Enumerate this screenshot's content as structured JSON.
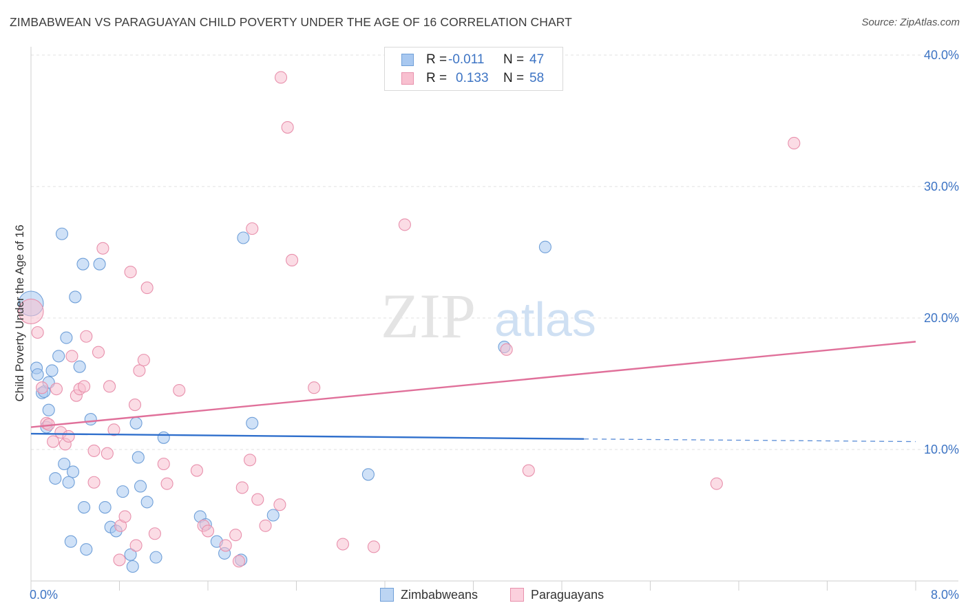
{
  "title": "ZIMBABWEAN VS PARAGUAYAN CHILD POVERTY UNDER THE AGE OF 16 CORRELATION CHART",
  "source": "Source: ZipAtlas.com",
  "watermark": {
    "zip": "ZIP",
    "atlas": "atlas"
  },
  "legend": {
    "rows": [
      {
        "r_label": "R =",
        "r_value": "-0.011",
        "n_label": "N =",
        "n_value": "47",
        "color": "#a8c8f0",
        "border": "#6f9fd8"
      },
      {
        "r_label": "R =",
        "r_value": "0.133",
        "n_label": "N =",
        "n_value": "58",
        "color": "#f8c0d0",
        "border": "#e890ac"
      }
    ]
  },
  "bottom_legend": [
    "Zimbabweans",
    "Paraguayans"
  ],
  "chart_data": {
    "type": "scatter",
    "title": "ZIMBABWEAN VS PARAGUAYAN CHILD POVERTY UNDER THE AGE OF 16 CORRELATION CHART",
    "xlabel": "",
    "ylabel": "Child Poverty Under the Age of 16",
    "xlim": [
      0,
      8
    ],
    "ylim": [
      0,
      40
    ],
    "x_ticks": [
      "0.0%",
      "8.0%"
    ],
    "y_ticks": [
      {
        "value": 10,
        "label": "10.0%"
      },
      {
        "value": 20,
        "label": "20.0%"
      },
      {
        "value": 30,
        "label": "30.0%"
      },
      {
        "value": 40,
        "label": "40.0%"
      }
    ],
    "grid": true,
    "legend_position": "top-center",
    "series": [
      {
        "name": "Zimbabweans",
        "color": "#a8c8f0",
        "stroke": "#6f9fd8",
        "trend": {
          "x0": 0,
          "y0": 11.2,
          "x1": 5.0,
          "y1": 10.8,
          "dash_x1": 8.0,
          "dash_y1": 10.6,
          "color": "#2f6fcc"
        },
        "points": [
          {
            "x": 0.0,
            "y": 21.1,
            "big": true
          },
          {
            "x": 0.05,
            "y": 16.2
          },
          {
            "x": 0.06,
            "y": 15.7
          },
          {
            "x": 0.1,
            "y": 14.3
          },
          {
            "x": 0.12,
            "y": 14.4
          },
          {
            "x": 0.16,
            "y": 15.1
          },
          {
            "x": 0.19,
            "y": 16.0
          },
          {
            "x": 0.14,
            "y": 11.7
          },
          {
            "x": 0.16,
            "y": 13.0
          },
          {
            "x": 0.25,
            "y": 17.1
          },
          {
            "x": 0.28,
            "y": 26.4
          },
          {
            "x": 0.32,
            "y": 18.5
          },
          {
            "x": 0.4,
            "y": 21.6
          },
          {
            "x": 0.44,
            "y": 16.3
          },
          {
            "x": 0.47,
            "y": 24.1
          },
          {
            "x": 0.62,
            "y": 24.1
          },
          {
            "x": 0.54,
            "y": 12.3
          },
          {
            "x": 0.3,
            "y": 8.9
          },
          {
            "x": 0.38,
            "y": 8.3
          },
          {
            "x": 0.22,
            "y": 7.8
          },
          {
            "x": 0.34,
            "y": 7.5
          },
          {
            "x": 0.48,
            "y": 5.6
          },
          {
            "x": 0.67,
            "y": 5.6
          },
          {
            "x": 0.72,
            "y": 4.1
          },
          {
            "x": 0.77,
            "y": 3.8
          },
          {
            "x": 0.83,
            "y": 6.8
          },
          {
            "x": 0.95,
            "y": 12.0
          },
          {
            "x": 0.97,
            "y": 9.4
          },
          {
            "x": 0.99,
            "y": 7.2
          },
          {
            "x": 1.05,
            "y": 6.0
          },
          {
            "x": 1.2,
            "y": 10.9
          },
          {
            "x": 0.36,
            "y": 3.0
          },
          {
            "x": 0.5,
            "y": 2.4
          },
          {
            "x": 0.9,
            "y": 2.0
          },
          {
            "x": 0.92,
            "y": 1.1
          },
          {
            "x": 1.13,
            "y": 1.8
          },
          {
            "x": 1.53,
            "y": 4.9
          },
          {
            "x": 1.58,
            "y": 4.3
          },
          {
            "x": 1.68,
            "y": 3.0
          },
          {
            "x": 1.75,
            "y": 2.1
          },
          {
            "x": 1.9,
            "y": 1.6
          },
          {
            "x": 1.92,
            "y": 26.1
          },
          {
            "x": 2.0,
            "y": 12.0
          },
          {
            "x": 2.19,
            "y": 5.0
          },
          {
            "x": 3.05,
            "y": 8.1
          },
          {
            "x": 4.28,
            "y": 17.8
          },
          {
            "x": 4.65,
            "y": 25.4
          }
        ]
      },
      {
        "name": "Paraguayans",
        "color": "#f8c0d0",
        "stroke": "#e890ac",
        "trend": {
          "x0": 0,
          "y0": 11.7,
          "x1": 8.0,
          "y1": 18.2,
          "color": "#e0709a"
        },
        "points": [
          {
            "x": 0.0,
            "y": 20.5,
            "big": true
          },
          {
            "x": 0.06,
            "y": 18.9
          },
          {
            "x": 0.1,
            "y": 14.7
          },
          {
            "x": 0.14,
            "y": 12.0
          },
          {
            "x": 0.16,
            "y": 11.9
          },
          {
            "x": 0.2,
            "y": 10.6
          },
          {
            "x": 0.23,
            "y": 14.6
          },
          {
            "x": 0.27,
            "y": 11.3
          },
          {
            "x": 0.31,
            "y": 10.4
          },
          {
            "x": 0.34,
            "y": 11.0
          },
          {
            "x": 0.37,
            "y": 17.1
          },
          {
            "x": 0.41,
            "y": 14.1
          },
          {
            "x": 0.44,
            "y": 14.6
          },
          {
            "x": 0.48,
            "y": 14.8
          },
          {
            "x": 0.5,
            "y": 18.6
          },
          {
            "x": 0.57,
            "y": 9.9
          },
          {
            "x": 0.57,
            "y": 7.5
          },
          {
            "x": 0.61,
            "y": 17.4
          },
          {
            "x": 0.65,
            "y": 25.3
          },
          {
            "x": 0.69,
            "y": 9.7
          },
          {
            "x": 0.71,
            "y": 14.8
          },
          {
            "x": 0.75,
            "y": 11.5
          },
          {
            "x": 0.8,
            "y": 1.6
          },
          {
            "x": 0.81,
            "y": 4.2
          },
          {
            "x": 0.85,
            "y": 4.9
          },
          {
            "x": 0.9,
            "y": 23.5
          },
          {
            "x": 0.94,
            "y": 13.4
          },
          {
            "x": 0.95,
            "y": 2.7
          },
          {
            "x": 0.98,
            "y": 16.0
          },
          {
            "x": 1.02,
            "y": 16.8
          },
          {
            "x": 1.05,
            "y": 22.3
          },
          {
            "x": 1.12,
            "y": 3.6
          },
          {
            "x": 1.2,
            "y": 8.9
          },
          {
            "x": 1.23,
            "y": 7.4
          },
          {
            "x": 1.34,
            "y": 14.5
          },
          {
            "x": 1.5,
            "y": 8.4
          },
          {
            "x": 1.56,
            "y": 4.2
          },
          {
            "x": 1.6,
            "y": 3.8
          },
          {
            "x": 1.76,
            "y": 2.7
          },
          {
            "x": 1.85,
            "y": 3.5
          },
          {
            "x": 1.88,
            "y": 1.5
          },
          {
            "x": 1.91,
            "y": 7.1
          },
          {
            "x": 1.98,
            "y": 9.2
          },
          {
            "x": 2.0,
            "y": 26.8
          },
          {
            "x": 2.05,
            "y": 6.2
          },
          {
            "x": 2.12,
            "y": 4.2
          },
          {
            "x": 2.25,
            "y": 5.8
          },
          {
            "x": 2.36,
            "y": 24.4
          },
          {
            "x": 2.26,
            "y": 38.3
          },
          {
            "x": 2.32,
            "y": 34.5
          },
          {
            "x": 2.56,
            "y": 14.7
          },
          {
            "x": 2.82,
            "y": 2.8
          },
          {
            "x": 3.1,
            "y": 2.6
          },
          {
            "x": 3.38,
            "y": 27.1
          },
          {
            "x": 4.3,
            "y": 17.6
          },
          {
            "x": 4.5,
            "y": 8.4
          },
          {
            "x": 6.2,
            "y": 7.4
          },
          {
            "x": 6.9,
            "y": 33.3
          }
        ]
      }
    ]
  }
}
